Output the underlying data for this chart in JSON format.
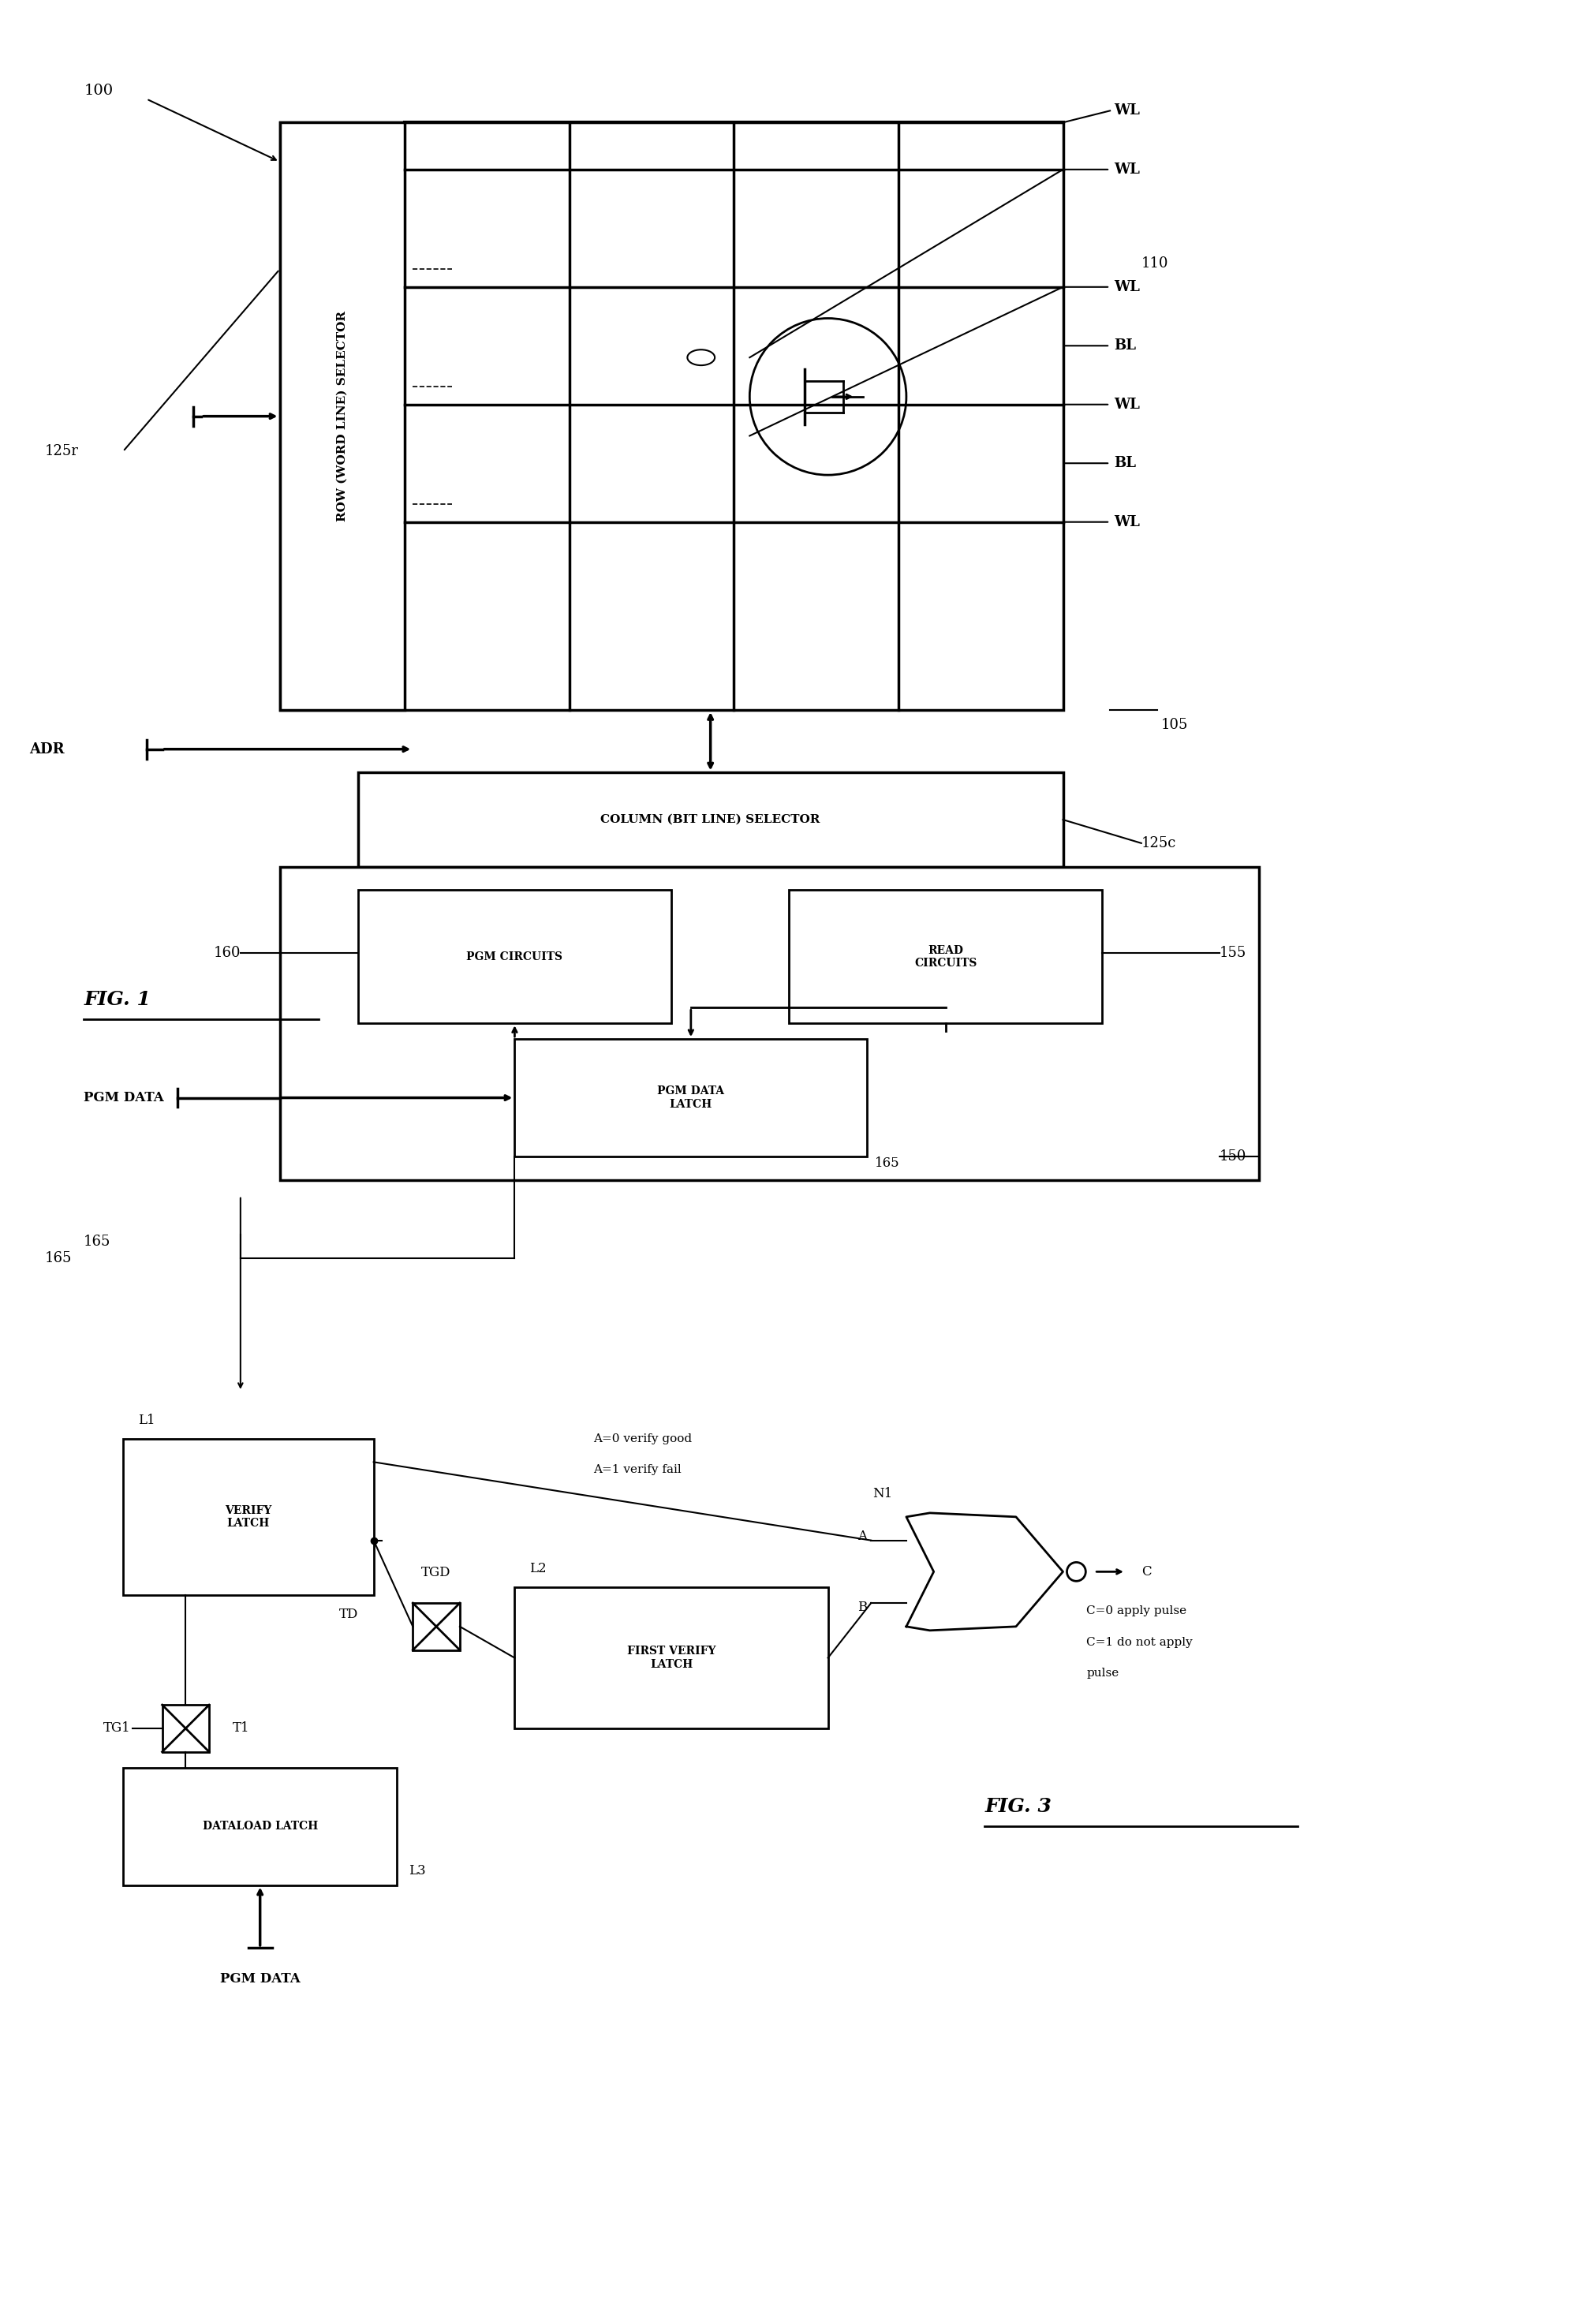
{
  "fig_width": 19.9,
  "fig_height": 29.46,
  "bg_color": "#ffffff",
  "line_color": "#000000",
  "text_color": "#000000",
  "fig1_label": "FIG. 1",
  "fig3_label": "FIG. 3",
  "ref_100": "100",
  "ref_110": "110",
  "ref_105": "105",
  "ref_125r": "125r",
  "ref_125c": "125c",
  "ref_150": "150",
  "ref_155": "155",
  "ref_160": "160",
  "ref_165_1": "165",
  "ref_165_2": "165",
  "label_WL1": "WL",
  "label_WL2": "WL",
  "label_WL3": "WL",
  "label_WL4": "WL",
  "label_BL1": "BL",
  "label_BL2": "BL",
  "label_ADR": "ADR",
  "label_PGM_DATA_1": "PGM DATA",
  "label_col_sel": "COLUMN (BIT LINE) SELECTOR",
  "label_row_sel": "ROW (WORD LINE) SELECTOR",
  "label_pgm_cir": "PGM CIRCUITS",
  "label_read_cir": "READ\nCIRCUITS",
  "label_pgm_latch": "PGM DATA\nLATCH",
  "label_N1": "N1",
  "label_A": "A",
  "label_B": "B",
  "label_C": "C",
  "label_L1": "L1",
  "label_L2": "L2",
  "label_L3": "L3",
  "label_TG1": "TG1",
  "label_TGD": "TGD",
  "label_TD": "TD",
  "label_T1": "T1",
  "label_verify_latch": "VERIFY\nLATCH",
  "label_first_verify": "FIRST VERIFY\nLATCH",
  "label_dataload": "DATALOAD LATCH",
  "label_PGM_DATA_2": "PGM DATA",
  "label_ref165": "165",
  "annotation_A0": "A=0 verify good",
  "annotation_A1": "A=1 verify fail",
  "annotation_C0": "C=0 apply pulse",
  "annotation_C1": "C=1 do not apply",
  "annotation_C2": "pulse"
}
